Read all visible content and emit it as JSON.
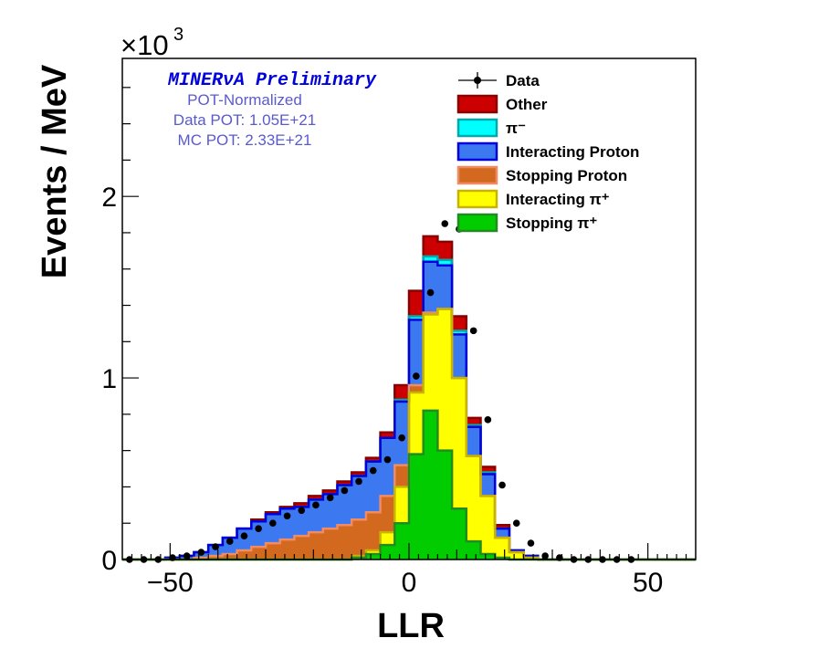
{
  "chart_data": {
    "type": "histogram-stacked",
    "xlabel": "LLR",
    "ylabel": "Events / MeV",
    "y_multiplier": "×10",
    "y_multiplier_exp": "3",
    "xlim": [
      -60,
      60
    ],
    "ylim": [
      0,
      2.76
    ],
    "x_ticks": [
      -50,
      0,
      50
    ],
    "y_ticks": [
      0,
      1,
      2
    ],
    "x_tick_labels": [
      "−50",
      "0",
      "50"
    ],
    "y_tick_labels": [
      "0",
      "1",
      "2"
    ],
    "bin_edges": [
      -60,
      -57,
      -54,
      -51,
      -48,
      -45,
      -42,
      -39,
      -36,
      -33,
      -30,
      -27,
      -24,
      -21,
      -18,
      -15,
      -12,
      -9,
      -6,
      -3,
      0,
      3,
      6,
      9,
      12,
      15,
      18,
      21,
      24,
      27,
      30,
      33,
      36,
      39,
      42,
      45,
      48,
      51,
      54,
      57,
      60
    ],
    "series": [
      {
        "name": "Stopping π⁺",
        "color": "#00cc00",
        "edge": "#228b22",
        "values": [
          0,
          0,
          0,
          0,
          0,
          0,
          0,
          0,
          0,
          0,
          0,
          0,
          0,
          0,
          0,
          0,
          0.01,
          0.03,
          0.08,
          0.2,
          0.58,
          0.82,
          0.6,
          0.28,
          0.1,
          0.03,
          0.01,
          0,
          0,
          0,
          0,
          0,
          0,
          0,
          0,
          0,
          0,
          0,
          0,
          0
        ]
      },
      {
        "name": "Interacting π⁺",
        "color": "#ffff00",
        "edge": "#c8b400",
        "values": [
          0,
          0,
          0,
          0,
          0,
          0,
          0,
          0,
          0,
          0,
          0,
          0,
          0,
          0,
          0,
          0,
          0.01,
          0.02,
          0.07,
          0.2,
          0.34,
          0.53,
          0.78,
          0.72,
          0.47,
          0.32,
          0.11,
          0.04,
          0.01,
          0,
          0,
          0,
          0,
          0,
          0,
          0,
          0,
          0,
          0,
          0
        ]
      },
      {
        "name": "Stopping Proton",
        "color": "#d2691e",
        "edge": "#f08c64",
        "values": [
          0,
          0,
          0,
          0,
          0,
          0.01,
          0.02,
          0.03,
          0.05,
          0.07,
          0.09,
          0.11,
          0.13,
          0.15,
          0.17,
          0.19,
          0.2,
          0.21,
          0.2,
          0.12,
          0.04,
          0.01,
          0,
          0,
          0,
          0,
          0,
          0,
          0,
          0,
          0,
          0,
          0,
          0,
          0,
          0,
          0,
          0,
          0,
          0
        ]
      },
      {
        "name": "Interacting Proton",
        "color": "#3c78f0",
        "edge": "#0000dd",
        "values": [
          0,
          0,
          0,
          0.01,
          0.02,
          0.03,
          0.06,
          0.09,
          0.12,
          0.14,
          0.16,
          0.17,
          0.16,
          0.18,
          0.19,
          0.22,
          0.24,
          0.28,
          0.32,
          0.35,
          0.36,
          0.28,
          0.24,
          0.24,
          0.16,
          0.12,
          0.05,
          0.01,
          0.01,
          0,
          0,
          0,
          0,
          0,
          0,
          0,
          0,
          0,
          0,
          0
        ]
      },
      {
        "name": "π⁻",
        "color": "#00ffff",
        "edge": "#00aaaa",
        "values": [
          0,
          0,
          0,
          0,
          0,
          0,
          0,
          0,
          0,
          0,
          0,
          0,
          0,
          0,
          0,
          0,
          0,
          0,
          0,
          0.01,
          0.02,
          0.03,
          0.03,
          0.02,
          0.01,
          0.01,
          0,
          0,
          0,
          0,
          0,
          0,
          0,
          0,
          0,
          0,
          0,
          0,
          0,
          0
        ]
      },
      {
        "name": "Other",
        "color": "#cc0000",
        "edge": "#880000",
        "values": [
          0,
          0,
          0,
          0,
          0,
          0,
          0,
          0,
          0,
          0.01,
          0.01,
          0.01,
          0.02,
          0.02,
          0.02,
          0.02,
          0.02,
          0.02,
          0.03,
          0.08,
          0.14,
          0.11,
          0.1,
          0.08,
          0.04,
          0.03,
          0.02,
          0,
          0,
          0,
          0,
          0,
          0,
          0,
          0,
          0,
          0,
          0,
          0,
          0
        ]
      }
    ],
    "data_points": {
      "name": "Data",
      "x": [
        -58.5,
        -55.5,
        -52.5,
        -49.5,
        -46.5,
        -43.5,
        -40.5,
        -37.5,
        -34.5,
        -31.5,
        -28.5,
        -25.5,
        -22.5,
        -19.5,
        -16.5,
        -13.5,
        -10.5,
        -7.5,
        -4.5,
        -1.5,
        1.5,
        4.5,
        7.5,
        10.5,
        13.5,
        16.5,
        19.5,
        22.5,
        25.5,
        28.5,
        31.5,
        34.5,
        37.5,
        40.5,
        43.5,
        46.5
      ],
      "y": [
        0,
        0,
        0,
        0.01,
        0.02,
        0.04,
        0.07,
        0.1,
        0.13,
        0.17,
        0.2,
        0.24,
        0.27,
        0.3,
        0.34,
        0.38,
        0.43,
        0.49,
        0.55,
        0.67,
        1.01,
        1.47,
        1.85,
        1.82,
        1.26,
        0.77,
        0.41,
        0.2,
        0.09,
        0.02,
        0.01,
        0,
        0,
        0,
        0,
        0
      ]
    },
    "legend_placement": "top-right",
    "annotations": {
      "title": "MINERνA Preliminary",
      "line1": "POT-Normalized",
      "line2": "Data POT: 1.05E+21",
      "line3": "MC POT: 2.33E+21"
    }
  }
}
